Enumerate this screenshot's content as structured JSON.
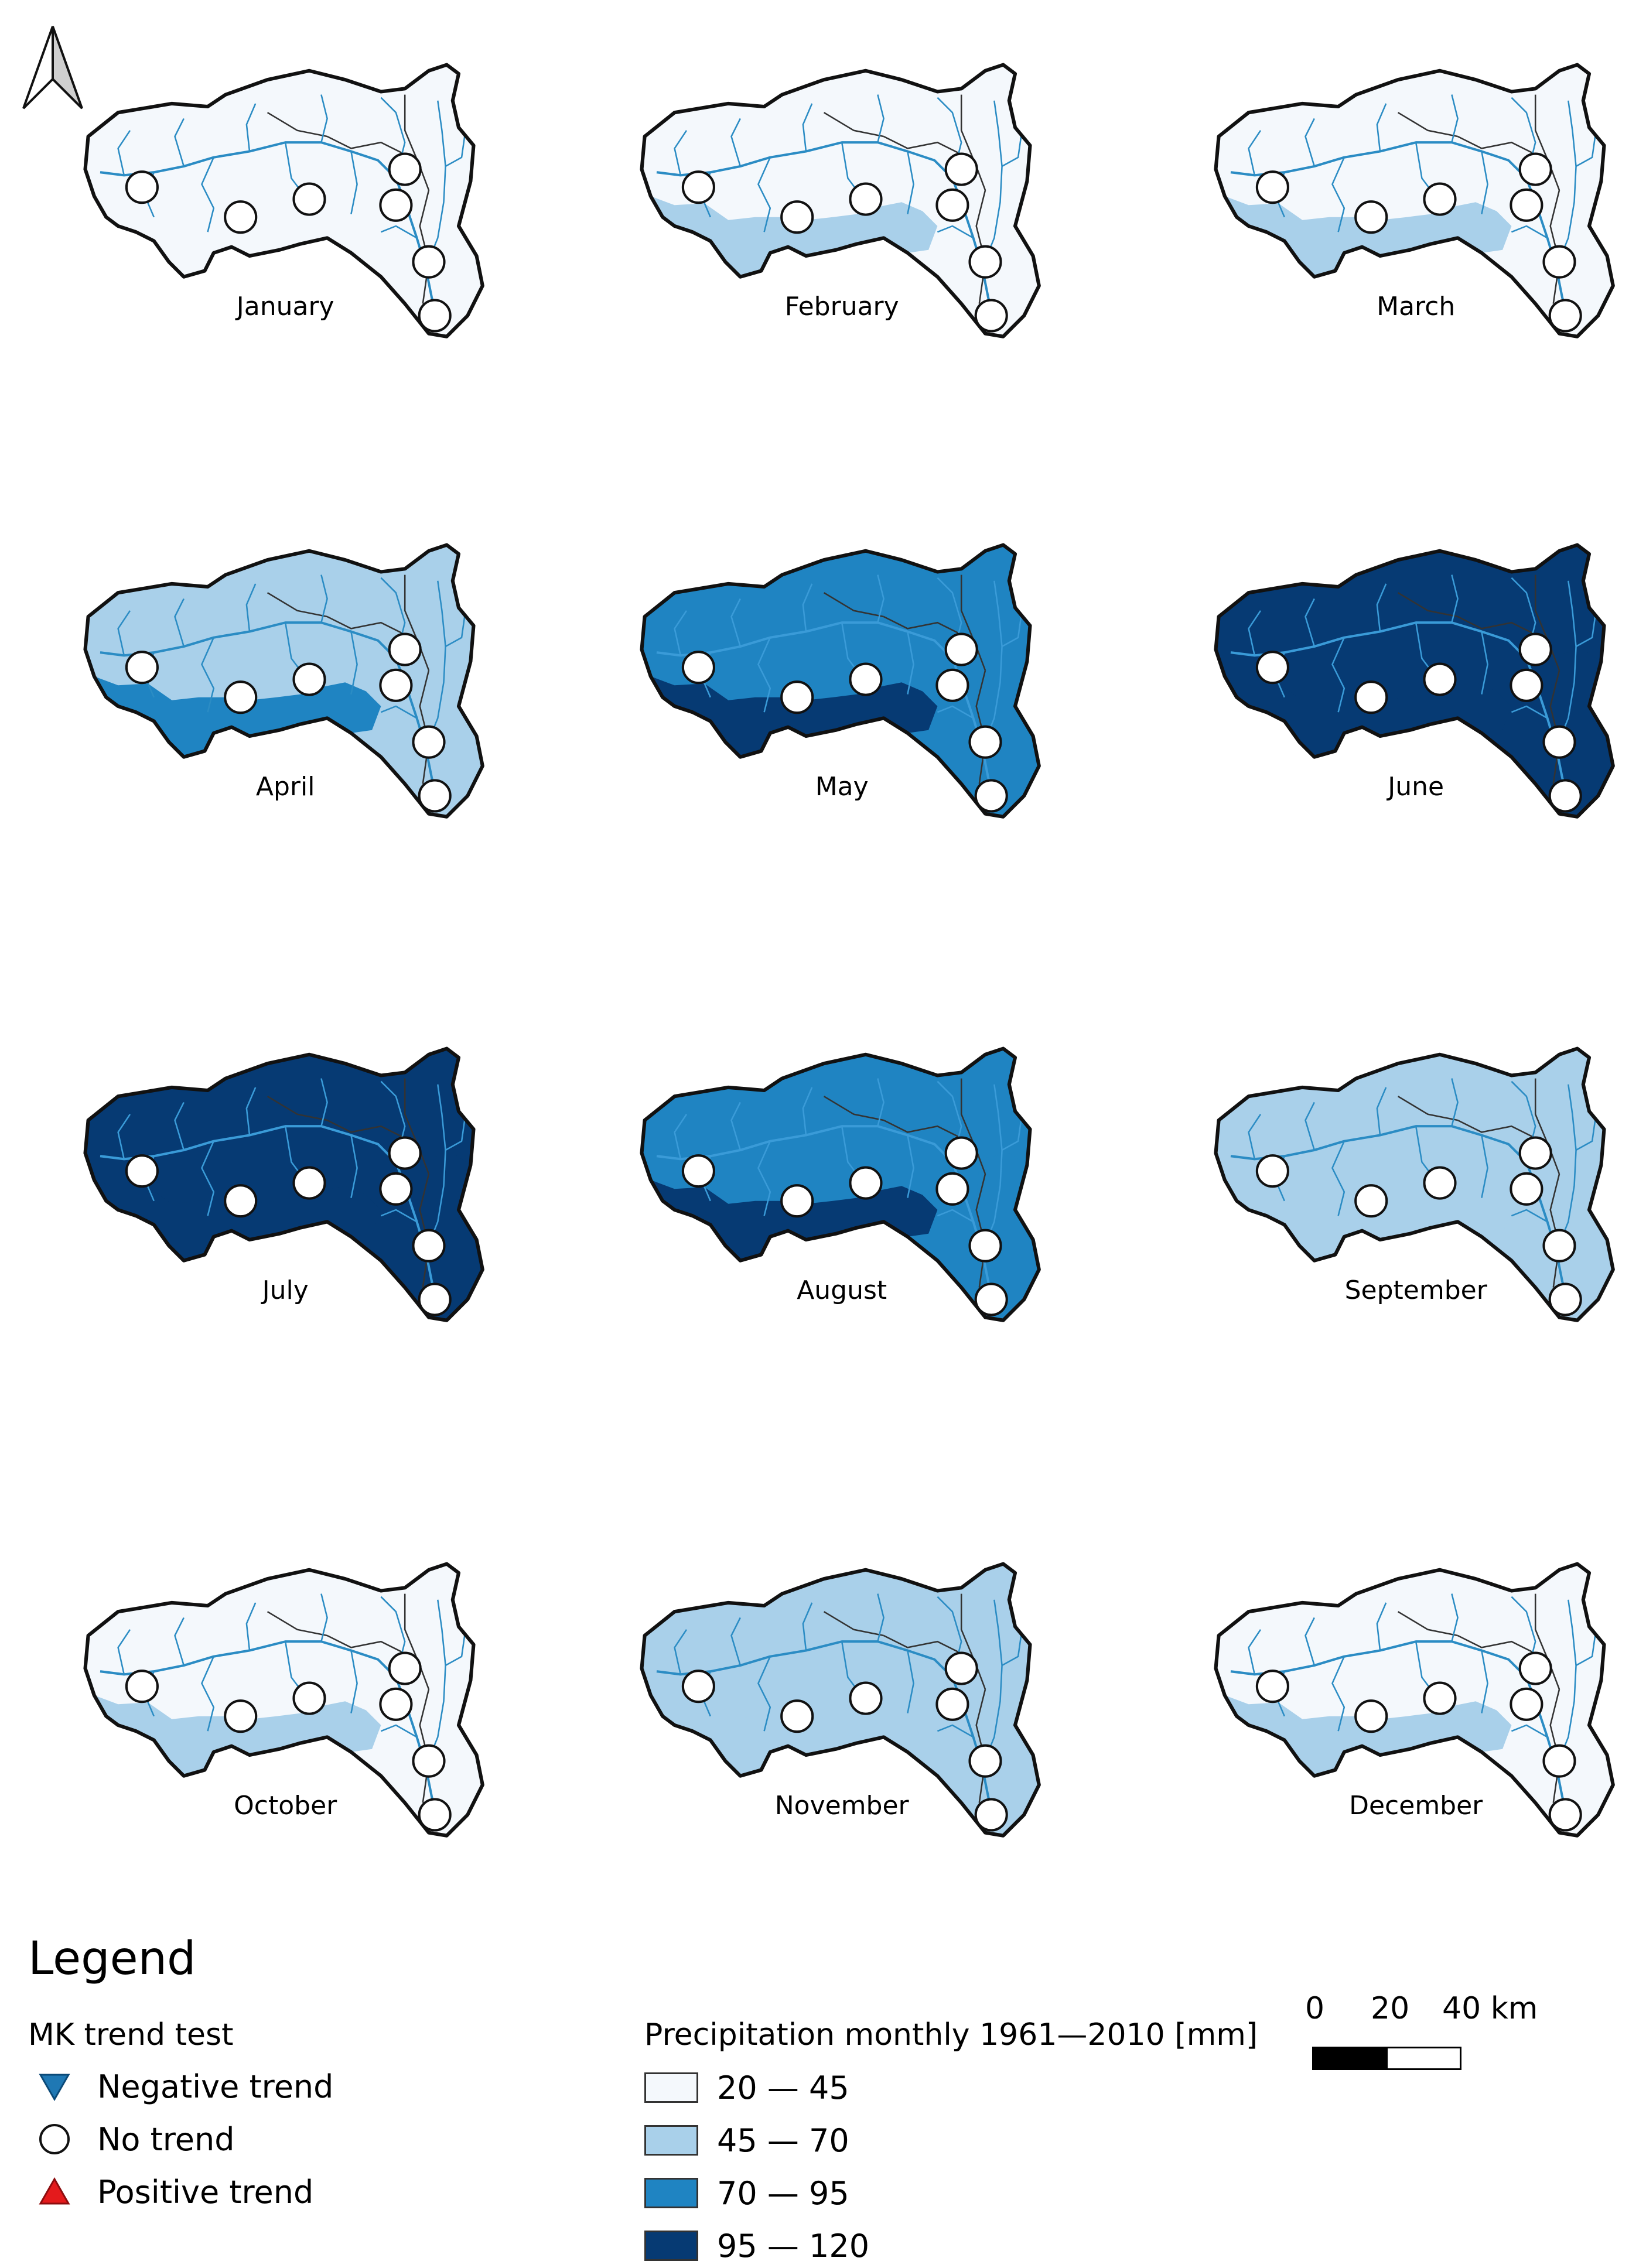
{
  "colors": {
    "class1": "#f4f8fc",
    "class2": "#a9d0ea",
    "class3": "#1f84c2",
    "class4": "#063a73",
    "river": "#2b8cc4",
    "outline": "#111111",
    "negative_trend": "#1f78b4",
    "positive_trend": "#e41a1c"
  },
  "maps": [
    {
      "month": "January",
      "north_class": 1,
      "south_class": 1
    },
    {
      "month": "February",
      "north_class": 1,
      "south_class": 2
    },
    {
      "month": "March",
      "north_class": 1,
      "south_class": 2
    },
    {
      "month": "April",
      "north_class": 2,
      "south_class": 3
    },
    {
      "month": "May",
      "north_class": 3,
      "south_class": 4
    },
    {
      "month": "June",
      "north_class": 4,
      "south_class": 4
    },
    {
      "month": "July",
      "north_class": 4,
      "south_class": 4
    },
    {
      "month": "August",
      "north_class": 3,
      "south_class": 4
    },
    {
      "month": "September",
      "north_class": 2,
      "south_class": 2
    },
    {
      "month": "October",
      "north_class": 1,
      "south_class": 2
    },
    {
      "month": "November",
      "north_class": 2,
      "south_class": 2
    },
    {
      "month": "December",
      "north_class": 1,
      "south_class": 2
    }
  ],
  "station_trend": "No trend",
  "legend": {
    "title": "Legend",
    "mk_title": "MK trend test",
    "mk_items": [
      {
        "symbol": "triangle-down-blue-icon",
        "label": "Negative trend"
      },
      {
        "symbol": "circle-white-icon",
        "label": "No trend"
      },
      {
        "symbol": "triangle-up-red-icon",
        "label": "Positive trend"
      }
    ],
    "precip_title": "Precipitation monthly 1961—2010 [mm]",
    "precip_classes": [
      {
        "label": "20 — 45"
      },
      {
        "label": "45 — 70"
      },
      {
        "label": "70 — 95"
      },
      {
        "label": "95 — 120"
      }
    ]
  },
  "scale": {
    "ticks": [
      "0",
      "20",
      "40 km"
    ]
  }
}
